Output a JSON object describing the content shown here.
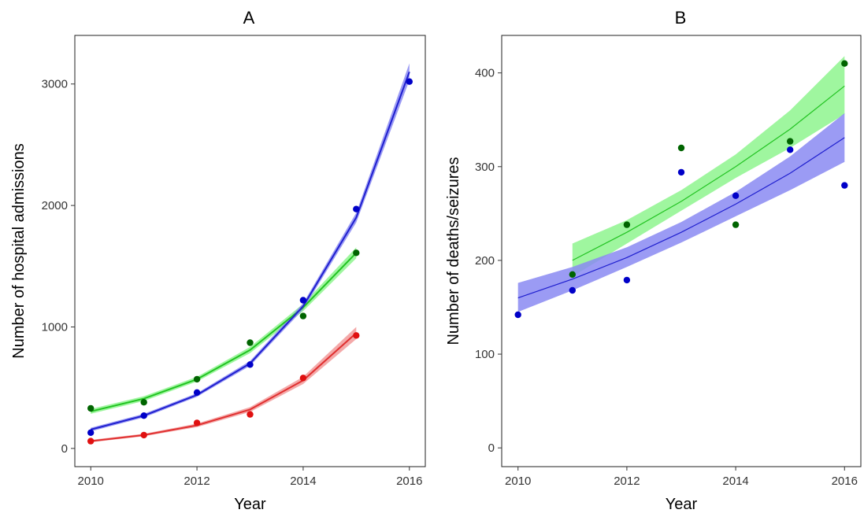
{
  "colors": {
    "green_line": "#22c322",
    "green_point": "#006400",
    "green_band": "#8ef58e",
    "blue_line": "#1f1fcf",
    "blue_point": "#0000c8",
    "blue_band": "#8a8af2",
    "red_line": "#e03030",
    "red_point": "#e01010",
    "red_band": "#f29a9a"
  },
  "chart_data": [
    {
      "type": "scatter",
      "title": "A",
      "xlabel": "Year",
      "ylabel": "Number of hospital admissions",
      "xlim": [
        2009.7,
        2016.3
      ],
      "ylim": [
        -150,
        3400
      ],
      "xticks": [
        2010,
        2012,
        2014,
        2016
      ],
      "yticks": [
        0,
        1000,
        2000,
        3000
      ],
      "grid": false,
      "legend": "none",
      "series": [
        {
          "color": "green",
          "points": {
            "x": [
              2010,
              2011,
              2012,
              2013,
              2014,
              2015
            ],
            "y": [
              330,
              380,
              570,
              870,
              1090,
              1610
            ]
          },
          "fit": {
            "x": [
              2010,
              2011,
              2012,
              2013,
              2014,
              2015
            ],
            "y": [
              305,
              410,
              570,
              810,
              1160,
              1610
            ]
          },
          "band": {
            "lower": [
              285,
              390,
              550,
              785,
              1130,
              1565
            ],
            "upper": [
              325,
              430,
              590,
              835,
              1190,
              1655
            ]
          }
        },
        {
          "color": "blue",
          "points": {
            "x": [
              2010,
              2011,
              2012,
              2013,
              2014,
              2015,
              2016
            ],
            "y": [
              130,
              270,
              460,
              690,
              1220,
              1970,
              3020
            ]
          },
          "fit": {
            "x": [
              2010,
              2011,
              2012,
              2013,
              2014,
              2015,
              2016
            ],
            "y": [
              155,
              270,
              440,
              700,
              1170,
              1900,
              3100
            ]
          },
          "band": {
            "lower": [
              140,
              255,
              425,
              680,
              1145,
              1860,
              3030
            ],
            "upper": [
              170,
              285,
              455,
              720,
              1195,
              1940,
              3170
            ]
          }
        },
        {
          "color": "red",
          "points": {
            "x": [
              2010,
              2011,
              2012,
              2013,
              2014,
              2015
            ],
            "y": [
              60,
              110,
              210,
              280,
              580,
              930
            ]
          },
          "fit": {
            "x": [
              2010,
              2011,
              2012,
              2013,
              2014,
              2015
            ],
            "y": [
              60,
              110,
              190,
              320,
              560,
              950
            ]
          },
          "band": {
            "lower": [
              50,
              100,
              175,
              300,
              530,
              900
            ],
            "upper": [
              70,
              120,
              205,
              340,
              590,
              1000
            ]
          }
        }
      ]
    },
    {
      "type": "scatter",
      "title": "B",
      "xlabel": "Year",
      "ylabel": "Number of deaths/seizures",
      "xlim": [
        2009.7,
        2016.3
      ],
      "ylim": [
        -20,
        440
      ],
      "xticks": [
        2010,
        2012,
        2014,
        2016
      ],
      "yticks": [
        0,
        100,
        200,
        300,
        400
      ],
      "grid": false,
      "legend": "none",
      "series": [
        {
          "color": "green",
          "points": {
            "x": [
              2011,
              2012,
              2013,
              2014,
              2015,
              2016
            ],
            "y": [
              185,
              238,
              320,
              238,
              327,
              410
            ]
          },
          "fit": {
            "x": [
              2011,
              2012,
              2013,
              2014,
              2015,
              2016
            ],
            "y": [
              200,
              230,
              263,
              300,
              340,
              386
            ]
          },
          "band": {
            "lower": [
              183,
              218,
              253,
              288,
              320,
              356
            ],
            "upper": [
              218,
              243,
              275,
              313,
              360,
              418
            ]
          }
        },
        {
          "color": "blue",
          "points": {
            "x": [
              2010,
              2011,
              2012,
              2013,
              2014,
              2015,
              2016
            ],
            "y": [
              142,
              168,
              179,
              294,
              269,
              318,
              280
            ]
          },
          "fit": {
            "x": [
              2010,
              2011,
              2012,
              2013,
              2014,
              2015,
              2016
            ],
            "y": [
              160,
              180,
              203,
              230,
              260,
              293,
              331
            ]
          },
          "band": {
            "lower": [
              145,
              168,
              193,
              219,
              247,
              275,
              305
            ],
            "upper": [
              176,
              193,
              214,
              241,
              273,
              311,
              357
            ]
          }
        }
      ]
    }
  ]
}
